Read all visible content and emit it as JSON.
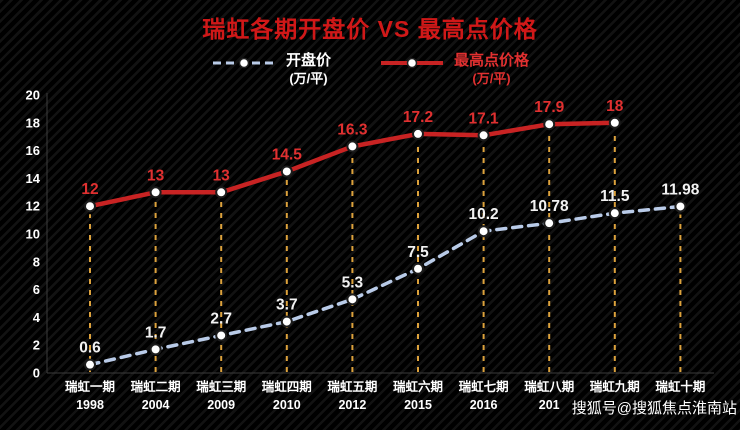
{
  "title": "瑞虹各期开盘价 VS 最高点价格",
  "watermark": "搜狐号@搜狐焦点淮南站",
  "legend": [
    {
      "label": "开盘价",
      "unit": "(万/平)",
      "color": "#b9cbe8",
      "style": "dashed"
    },
    {
      "label": "最高点价格",
      "unit": "(万/平)",
      "color": "#c82525",
      "style": "solid"
    }
  ],
  "chart_data": {
    "type": "line",
    "title": "瑞虹各期开盘价 VS 最高点价格",
    "categories": [
      "瑞虹一期",
      "瑞虹二期",
      "瑞虹三期",
      "瑞虹四期",
      "瑞虹五期",
      "瑞虹六期",
      "瑞虹七期",
      "瑞虹八期",
      "瑞虹九期",
      "瑞虹十期"
    ],
    "category_years": [
      "1998",
      "2004",
      "2009",
      "2010",
      "2012",
      "2015",
      "2016",
      "201",
      "",
      ""
    ],
    "series": [
      {
        "name": "开盘价",
        "values": [
          0.6,
          1.7,
          2.7,
          3.7,
          5.3,
          7.5,
          10.2,
          10.78,
          11.5,
          11.98
        ],
        "color": "#b9cbe8",
        "dash": true,
        "label_color": "#f2f2f2"
      },
      {
        "name": "最高点价格",
        "values": [
          12,
          13,
          13,
          14.5,
          16.3,
          17.2,
          17.1,
          17.9,
          18,
          null
        ],
        "color": "#c82323",
        "dash": false,
        "label_color": "#e03030"
      }
    ],
    "ylim": [
      0,
      20
    ],
    "ytick_step": 2,
    "guide_color": "#dda23c",
    "axis_color": "#3c3c3c",
    "grid": false,
    "legend_position": "top"
  }
}
